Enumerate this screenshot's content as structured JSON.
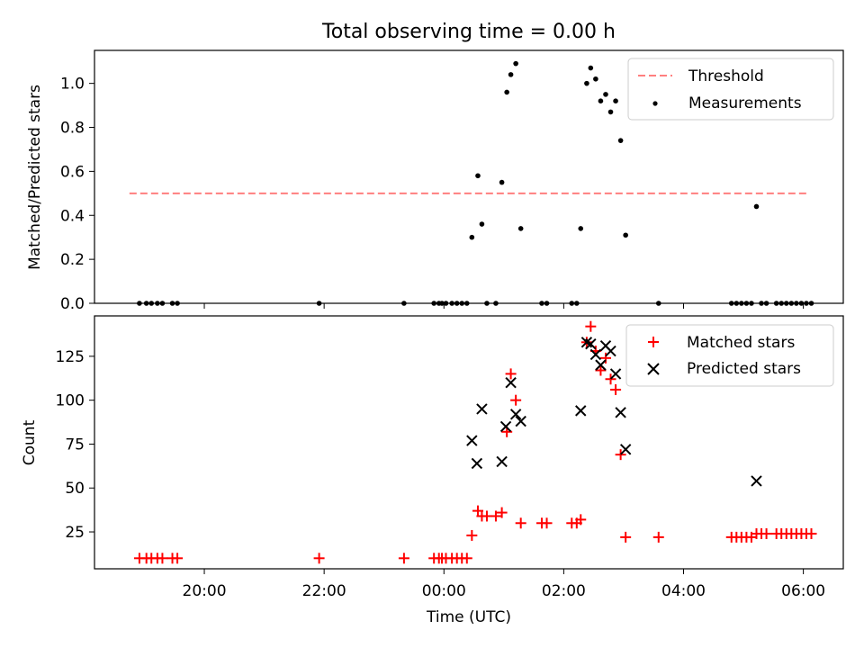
{
  "chart_data": [
    {
      "type": "scatter",
      "title": "Total observing time = 0.00 h",
      "xlabel": "",
      "ylabel": "Matched/Predicted stars",
      "xlim": [
        "18:10",
        "06:40"
      ],
      "ylim": [
        0,
        1.15
      ],
      "yticks": [
        0.0,
        0.2,
        0.4,
        0.6,
        0.8,
        1.0
      ],
      "ytick_labels": [
        "0.0",
        "0.2",
        "0.4",
        "0.6",
        "0.8",
        "1.0"
      ],
      "legend": "top-right",
      "series": [
        {
          "name": "Threshold",
          "style": "dashed-line",
          "color": "#ff7f7f",
          "points": [
            {
              "x": "18:45",
              "y": 0.5
            },
            {
              "x": "06:05",
              "y": 0.5
            }
          ]
        },
        {
          "name": "Measurements",
          "style": "dot",
          "color": "#000000",
          "points": [
            {
              "x": "18:55",
              "y": 0
            },
            {
              "x": "19:02",
              "y": 0
            },
            {
              "x": "19:07",
              "y": 0
            },
            {
              "x": "19:13",
              "y": 0
            },
            {
              "x": "19:18",
              "y": 0
            },
            {
              "x": "19:28",
              "y": 0
            },
            {
              "x": "19:33",
              "y": 0
            },
            {
              "x": "21:55",
              "y": 0
            },
            {
              "x": "23:20",
              "y": 0
            },
            {
              "x": "23:50",
              "y": 0
            },
            {
              "x": "23:55",
              "y": 0
            },
            {
              "x": "23:58",
              "y": 0
            },
            {
              "x": "00:02",
              "y": 0
            },
            {
              "x": "00:08",
              "y": 0
            },
            {
              "x": "00:13",
              "y": 0
            },
            {
              "x": "00:18",
              "y": 0
            },
            {
              "x": "00:23",
              "y": 0
            },
            {
              "x": "00:28",
              "y": 0.3
            },
            {
              "x": "00:34",
              "y": 0.58
            },
            {
              "x": "00:38",
              "y": 0.36
            },
            {
              "x": "00:43",
              "y": 0
            },
            {
              "x": "00:52",
              "y": 0
            },
            {
              "x": "00:58",
              "y": 0.55
            },
            {
              "x": "01:03",
              "y": 0.96
            },
            {
              "x": "01:07",
              "y": 1.04
            },
            {
              "x": "01:12",
              "y": 1.09
            },
            {
              "x": "01:17",
              "y": 0.34
            },
            {
              "x": "01:38",
              "y": 0
            },
            {
              "x": "01:43",
              "y": 0
            },
            {
              "x": "02:08",
              "y": 0
            },
            {
              "x": "02:13",
              "y": 0
            },
            {
              "x": "02:17",
              "y": 0.34
            },
            {
              "x": "02:23",
              "y": 1.0
            },
            {
              "x": "02:27",
              "y": 1.07
            },
            {
              "x": "02:32",
              "y": 1.02
            },
            {
              "x": "02:37",
              "y": 0.92
            },
            {
              "x": "02:42",
              "y": 0.95
            },
            {
              "x": "02:47",
              "y": 0.87
            },
            {
              "x": "02:52",
              "y": 0.92
            },
            {
              "x": "02:57",
              "y": 0.74
            },
            {
              "x": "03:02",
              "y": 0.31
            },
            {
              "x": "03:35",
              "y": 0
            },
            {
              "x": "04:48",
              "y": 0
            },
            {
              "x": "04:53",
              "y": 0
            },
            {
              "x": "04:58",
              "y": 0
            },
            {
              "x": "05:03",
              "y": 0
            },
            {
              "x": "05:08",
              "y": 0
            },
            {
              "x": "05:13",
              "y": 0.44
            },
            {
              "x": "05:18",
              "y": 0
            },
            {
              "x": "05:23",
              "y": 0
            },
            {
              "x": "05:33",
              "y": 0
            },
            {
              "x": "05:38",
              "y": 0
            },
            {
              "x": "05:43",
              "y": 0
            },
            {
              "x": "05:48",
              "y": 0
            },
            {
              "x": "05:53",
              "y": 0
            },
            {
              "x": "05:58",
              "y": 0
            },
            {
              "x": "06:03",
              "y": 0
            },
            {
              "x": "06:08",
              "y": 0
            }
          ]
        }
      ]
    },
    {
      "type": "scatter",
      "title": "",
      "xlabel": "Time (UTC)",
      "ylabel": "Count",
      "xlim": [
        "18:10",
        "06:40"
      ],
      "ylim": [
        4,
        148
      ],
      "xticks": [
        "20:00",
        "22:00",
        "00:00",
        "02:00",
        "04:00",
        "06:00"
      ],
      "yticks": [
        25,
        50,
        75,
        100,
        125
      ],
      "ytick_labels": [
        "25",
        "50",
        "75",
        "100",
        "125"
      ],
      "legend": "top-right",
      "series": [
        {
          "name": "Matched stars",
          "style": "plus",
          "color": "#ff0000",
          "points": [
            {
              "x": "18:55",
              "y": 10
            },
            {
              "x": "19:02",
              "y": 10
            },
            {
              "x": "19:07",
              "y": 10
            },
            {
              "x": "19:13",
              "y": 10
            },
            {
              "x": "19:18",
              "y": 10
            },
            {
              "x": "19:28",
              "y": 10
            },
            {
              "x": "19:33",
              "y": 10
            },
            {
              "x": "21:55",
              "y": 10
            },
            {
              "x": "23:20",
              "y": 10
            },
            {
              "x": "23:50",
              "y": 10
            },
            {
              "x": "23:55",
              "y": 10
            },
            {
              "x": "23:58",
              "y": 10
            },
            {
              "x": "00:02",
              "y": 10
            },
            {
              "x": "00:08",
              "y": 10
            },
            {
              "x": "00:13",
              "y": 10
            },
            {
              "x": "00:18",
              "y": 10
            },
            {
              "x": "00:23",
              "y": 10
            },
            {
              "x": "00:28",
              "y": 23
            },
            {
              "x": "00:34",
              "y": 37
            },
            {
              "x": "00:38",
              "y": 34
            },
            {
              "x": "00:43",
              "y": 34
            },
            {
              "x": "00:52",
              "y": 34
            },
            {
              "x": "00:58",
              "y": 36
            },
            {
              "x": "01:03",
              "y": 82
            },
            {
              "x": "01:07",
              "y": 115
            },
            {
              "x": "01:12",
              "y": 100
            },
            {
              "x": "01:17",
              "y": 30
            },
            {
              "x": "01:38",
              "y": 30
            },
            {
              "x": "01:43",
              "y": 30
            },
            {
              "x": "02:08",
              "y": 30
            },
            {
              "x": "02:13",
              "y": 30
            },
            {
              "x": "02:17",
              "y": 32
            },
            {
              "x": "02:23",
              "y": 133
            },
            {
              "x": "02:27",
              "y": 142
            },
            {
              "x": "02:32",
              "y": 128
            },
            {
              "x": "02:37",
              "y": 117
            },
            {
              "x": "02:42",
              "y": 124
            },
            {
              "x": "02:47",
              "y": 112
            },
            {
              "x": "02:52",
              "y": 106
            },
            {
              "x": "02:57",
              "y": 69
            },
            {
              "x": "03:02",
              "y": 22
            },
            {
              "x": "03:35",
              "y": 22
            },
            {
              "x": "04:48",
              "y": 22
            },
            {
              "x": "04:53",
              "y": 22
            },
            {
              "x": "04:58",
              "y": 22
            },
            {
              "x": "05:03",
              "y": 22
            },
            {
              "x": "05:08",
              "y": 22
            },
            {
              "x": "05:13",
              "y": 24
            },
            {
              "x": "05:18",
              "y": 24
            },
            {
              "x": "05:23",
              "y": 24
            },
            {
              "x": "05:33",
              "y": 24
            },
            {
              "x": "05:38",
              "y": 24
            },
            {
              "x": "05:43",
              "y": 24
            },
            {
              "x": "05:48",
              "y": 24
            },
            {
              "x": "05:53",
              "y": 24
            },
            {
              "x": "05:58",
              "y": 24
            },
            {
              "x": "06:03",
              "y": 24
            },
            {
              "x": "06:08",
              "y": 24
            }
          ]
        },
        {
          "name": "Predicted stars",
          "style": "x",
          "color": "#000000",
          "points": [
            {
              "x": "00:28",
              "y": 77
            },
            {
              "x": "00:33",
              "y": 64
            },
            {
              "x": "00:38",
              "y": 95
            },
            {
              "x": "00:58",
              "y": 65
            },
            {
              "x": "01:02",
              "y": 85
            },
            {
              "x": "01:07",
              "y": 110
            },
            {
              "x": "01:12",
              "y": 92
            },
            {
              "x": "01:17",
              "y": 88
            },
            {
              "x": "02:17",
              "y": 94
            },
            {
              "x": "02:23",
              "y": 133
            },
            {
              "x": "02:27",
              "y": 132
            },
            {
              "x": "02:32",
              "y": 126
            },
            {
              "x": "02:37",
              "y": 120
            },
            {
              "x": "02:42",
              "y": 131
            },
            {
              "x": "02:47",
              "y": 128
            },
            {
              "x": "02:52",
              "y": 115
            },
            {
              "x": "02:57",
              "y": 93
            },
            {
              "x": "03:02",
              "y": 72
            },
            {
              "x": "05:13",
              "y": 54
            }
          ]
        }
      ]
    }
  ]
}
